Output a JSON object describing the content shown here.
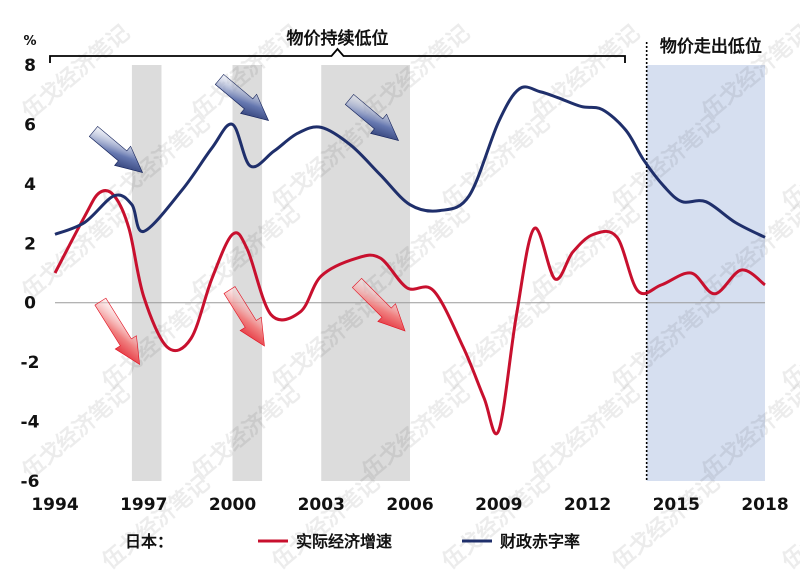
{
  "chart_data": {
    "type": "line",
    "yunit": "%",
    "ylim": [
      -6,
      8
    ],
    "yticks": [
      8,
      6,
      4,
      2,
      0,
      -2,
      -4,
      -6
    ],
    "xlim": [
      1994,
      2018
    ],
    "xticks": [
      1994,
      1997,
      2000,
      2003,
      2006,
      2009,
      2012,
      2015,
      2018
    ],
    "series": [
      {
        "name": "实际经济增速",
        "color": "#c8102e",
        "x": [
          1994,
          1995,
          1995.5,
          1996,
          1996.5,
          1997,
          1997.8,
          1998.6,
          1999.3,
          2000,
          2000.5,
          2001.3,
          2002.3,
          2003,
          2004.2,
          2005,
          2005.9,
          2006.8,
          2007.8,
          2008.5,
          2009,
          2009.6,
          2010.2,
          2010.9,
          2011.5,
          2012.2,
          2013,
          2013.7,
          2014.5,
          2015.5,
          2016.3,
          2017.2,
          2018
        ],
        "values": [
          1.0,
          2.9,
          3.7,
          3.6,
          2.5,
          0.2,
          -1.5,
          -1.2,
          0.8,
          2.3,
          1.8,
          -0.4,
          -0.3,
          0.9,
          1.5,
          1.5,
          0.5,
          0.4,
          -1.5,
          -3.2,
          -4.3,
          -0.4,
          2.5,
          0.8,
          1.7,
          2.3,
          2.2,
          0.4,
          0.6,
          1.0,
          0.3,
          1.1,
          0.6
        ]
      },
      {
        "name": "财政赤字率",
        "color": "#1f2f6b",
        "x": [
          1994,
          1995,
          1996,
          1996.6,
          1997,
          1998.3,
          1999.3,
          2000,
          2000.6,
          2001.4,
          2002.2,
          2003,
          2004,
          2005,
          2006,
          2007,
          2008,
          2009,
          2009.7,
          2010.4,
          2011,
          2011.8,
          2012.5,
          2013.3,
          2013.9,
          2014.6,
          2015.2,
          2016,
          2017,
          2018
        ],
        "values": [
          2.3,
          2.7,
          3.6,
          3.3,
          2.4,
          3.8,
          5.2,
          6.0,
          4.6,
          5.1,
          5.7,
          5.9,
          5.3,
          4.3,
          3.3,
          3.1,
          3.6,
          6.1,
          7.2,
          7.1,
          6.9,
          6.6,
          6.5,
          5.8,
          4.8,
          3.9,
          3.4,
          3.4,
          2.7,
          2.2
        ]
      }
    ],
    "shaded_periods": [
      [
        1996.6,
        1997.6
      ],
      [
        2000,
        2001
      ],
      [
        2003,
        2006
      ]
    ],
    "highlight_period": [
      2014,
      2018
    ],
    "annotations": {
      "low_price": "物价持续低位",
      "price_exit": "物价走出低位"
    },
    "legend": {
      "prefix": "日本：",
      "position": "bottom"
    }
  },
  "watermark": "伍戈经济笔记"
}
